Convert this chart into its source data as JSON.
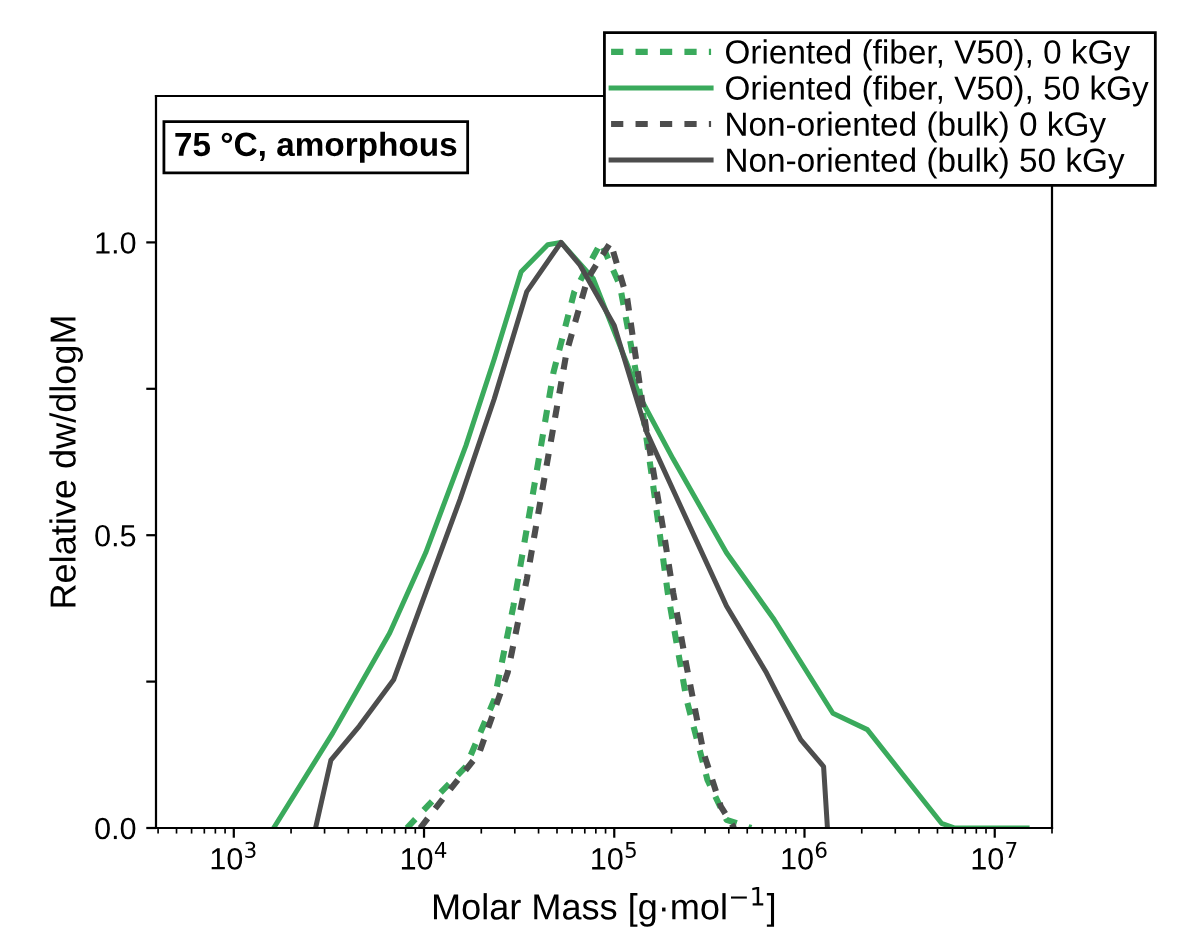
{
  "chart_data": {
    "type": "line",
    "xlabel": "Molar Mass [g·mol$^{−1}$]",
    "ylabel": "Relative dw/dlogM",
    "log": "x",
    "legend": "top right",
    "grid": false,
    "annotations": [
      "75 °C, amorphous"
    ],
    "xlim": [
      390,
      20000000
    ],
    "ylim": [
      0,
      1.25
    ],
    "xticks": [
      {
        "value": 1000,
        "label": "10$^{3}$"
      },
      {
        "value": 10000,
        "label": "10$^{4}$"
      },
      {
        "value": 100000,
        "label": "10$^{5}$"
      },
      {
        "value": 1000000,
        "label": "10$^{6}$"
      },
      {
        "value": 10000000,
        "label": "10$^{7}$"
      }
    ],
    "yticks": [
      {
        "value": 0,
        "label": "0.0"
      },
      {
        "value": 0.25,
        "label": null
      },
      {
        "value": 0.5,
        "label": "0.5"
      },
      {
        "value": 0.75,
        "label": null
      },
      {
        "value": 1.0,
        "label": "1.0"
      }
    ],
    "series": [
      {
        "name": "Oriented (fiber, V50), 0 kGy",
        "color": "#3aaa5c",
        "line_style": "dotted",
        "x": [
          8130,
          11200,
          16600,
          23400,
          29500,
          38000,
          47900,
          61700,
          85100,
          107000,
          138000,
          162000,
          191000,
          240000,
          309000,
          389000,
          525000
        ],
        "values": [
          0,
          0.048,
          0.105,
          0.219,
          0.379,
          0.585,
          0.778,
          0.916,
          1.0,
          0.927,
          0.733,
          0.573,
          0.402,
          0.219,
          0.082,
          0.014,
          0
        ]
      },
      {
        "name": "Oriented (fiber, V50), 50 kGy",
        "color": "#3aaa5c",
        "line_style": "solid",
        "x": [
          1620,
          3310,
          6600,
          10200,
          16600,
          23400,
          32400,
          44700,
          52500,
          77600,
          138000,
          204000,
          389000,
          692000,
          1410000,
          2140000,
          3240000,
          5250000,
          6170000,
          14800000
        ],
        "values": [
          0,
          0.162,
          0.333,
          0.47,
          0.653,
          0.801,
          0.95,
          0.996,
          1.0,
          0.938,
          0.733,
          0.63,
          0.47,
          0.356,
          0.196,
          0.168,
          0.094,
          0.008,
          0,
          0
        ]
      },
      {
        "name": "Non-oriented (bulk) 0 kGy",
        "color": "#4d4d4d",
        "line_style": "dotted",
        "x": [
          9550,
          13200,
          19500,
          27500,
          34700,
          44700,
          56200,
          72400,
          95500,
          117000,
          148000,
          182000,
          204000,
          240000,
          295000,
          363000,
          427000
        ],
        "values": [
          0,
          0.059,
          0.128,
          0.265,
          0.425,
          0.63,
          0.813,
          0.938,
          1.0,
          0.904,
          0.676,
          0.505,
          0.402,
          0.276,
          0.128,
          0.037,
          0
        ]
      },
      {
        "name": "Non-oriented (bulk) 50 kGy",
        "color": "#4d4d4d",
        "line_style": "solid",
        "x": [
          2690,
          3240,
          4570,
          6920,
          10200,
          15500,
          23400,
          34700,
          52500,
          66100,
          100000,
          148000,
          240000,
          389000,
          631000,
          955000,
          1260000,
          1320000
        ],
        "values": [
          0,
          0.116,
          0.174,
          0.253,
          0.402,
          0.562,
          0.733,
          0.916,
          1.0,
          0.961,
          0.858,
          0.676,
          0.527,
          0.379,
          0.265,
          0.151,
          0.105,
          0
        ]
      }
    ]
  }
}
